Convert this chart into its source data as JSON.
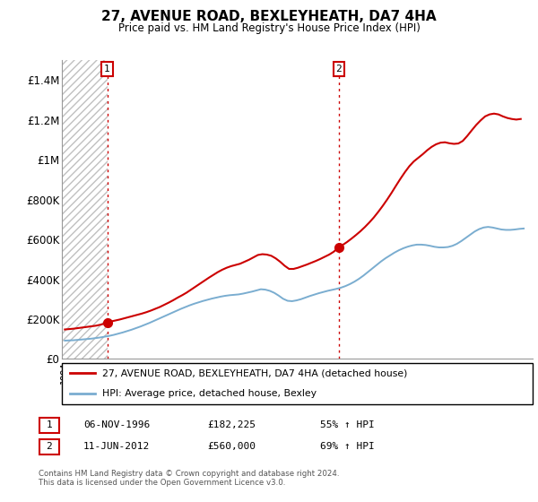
{
  "title": "27, AVENUE ROAD, BEXLEYHEATH, DA7 4HA",
  "subtitle": "Price paid vs. HM Land Registry's House Price Index (HPI)",
  "legend_entry1": "27, AVENUE ROAD, BEXLEYHEATH, DA7 4HA (detached house)",
  "legend_entry2": "HPI: Average price, detached house, Bexley",
  "annotation1_label": "1",
  "annotation1_date": "06-NOV-1996",
  "annotation1_price": "£182,225",
  "annotation1_hpi": "55% ↑ HPI",
  "annotation2_label": "2",
  "annotation2_date": "11-JUN-2012",
  "annotation2_price": "£560,000",
  "annotation2_hpi": "69% ↑ HPI",
  "footnote": "Contains HM Land Registry data © Crown copyright and database right 2024.\nThis data is licensed under the Open Government Licence v3.0.",
  "red_color": "#cc0000",
  "blue_color": "#7aadd0",
  "ylim": [
    0,
    1500000
  ],
  "yticks": [
    0,
    200000,
    400000,
    600000,
    800000,
    1000000,
    1200000,
    1400000
  ],
  "ytick_labels": [
    "£0",
    "£200K",
    "£400K",
    "£600K",
    "£800K",
    "£1M",
    "£1.2M",
    "£1.4M"
  ],
  "sale1_x": 1996.85,
  "sale1_y": 182225,
  "sale2_x": 2012.44,
  "sale2_y": 560000,
  "xmin": 1993.8,
  "xmax": 2025.5,
  "red_line_x": [
    1994.0,
    1994.3,
    1994.6,
    1994.9,
    1995.2,
    1995.5,
    1995.8,
    1996.1,
    1996.4,
    1996.7,
    1996.85,
    1997.1,
    1997.4,
    1997.7,
    1998.0,
    1998.3,
    1998.6,
    1998.9,
    1999.2,
    1999.5,
    1999.8,
    2000.1,
    2000.4,
    2000.7,
    2001.0,
    2001.3,
    2001.6,
    2001.9,
    2002.2,
    2002.5,
    2002.8,
    2003.1,
    2003.4,
    2003.7,
    2004.0,
    2004.3,
    2004.6,
    2004.9,
    2005.2,
    2005.5,
    2005.8,
    2006.1,
    2006.4,
    2006.7,
    2007.0,
    2007.3,
    2007.6,
    2007.9,
    2008.2,
    2008.5,
    2008.8,
    2009.1,
    2009.4,
    2009.7,
    2010.0,
    2010.3,
    2010.6,
    2010.9,
    2011.2,
    2011.5,
    2011.8,
    2012.1,
    2012.44,
    2012.7,
    2013.0,
    2013.3,
    2013.6,
    2013.9,
    2014.2,
    2014.5,
    2014.8,
    2015.1,
    2015.4,
    2015.7,
    2016.0,
    2016.3,
    2016.6,
    2016.9,
    2017.2,
    2017.5,
    2017.8,
    2018.1,
    2018.4,
    2018.7,
    2019.0,
    2019.3,
    2019.6,
    2019.9,
    2020.2,
    2020.5,
    2020.8,
    2021.1,
    2021.4,
    2021.7,
    2022.0,
    2022.3,
    2022.6,
    2022.9,
    2023.2,
    2023.5,
    2023.8,
    2024.1,
    2024.4,
    2024.7
  ],
  "red_line_y": [
    148000,
    150000,
    152000,
    155000,
    158000,
    161000,
    164000,
    167000,
    172000,
    178000,
    182225,
    188000,
    193000,
    198000,
    204000,
    210000,
    216000,
    222000,
    228000,
    235000,
    243000,
    252000,
    261000,
    272000,
    283000,
    295000,
    308000,
    320000,
    333000,
    348000,
    363000,
    378000,
    393000,
    408000,
    422000,
    436000,
    448000,
    458000,
    466000,
    472000,
    478000,
    488000,
    498000,
    510000,
    522000,
    526000,
    524000,
    518000,
    505000,
    488000,
    468000,
    452000,
    452000,
    458000,
    466000,
    474000,
    483000,
    492000,
    502000,
    513000,
    524000,
    538000,
    560000,
    572000,
    587000,
    604000,
    622000,
    641000,
    662000,
    685000,
    710000,
    738000,
    768000,
    800000,
    834000,
    870000,
    905000,
    938000,
    968000,
    992000,
    1010000,
    1028000,
    1048000,
    1065000,
    1078000,
    1086000,
    1088000,
    1083000,
    1080000,
    1082000,
    1095000,
    1120000,
    1148000,
    1175000,
    1198000,
    1218000,
    1228000,
    1232000,
    1228000,
    1218000,
    1210000,
    1205000,
    1202000,
    1205000
  ],
  "blue_line_x": [
    1994.0,
    1994.3,
    1994.6,
    1994.9,
    1995.2,
    1995.5,
    1995.8,
    1996.1,
    1996.4,
    1996.7,
    1997.0,
    1997.3,
    1997.6,
    1997.9,
    1998.2,
    1998.5,
    1998.8,
    1999.1,
    1999.4,
    1999.7,
    2000.0,
    2000.3,
    2000.6,
    2000.9,
    2001.2,
    2001.5,
    2001.8,
    2002.1,
    2002.4,
    2002.7,
    2003.0,
    2003.3,
    2003.6,
    2003.9,
    2004.2,
    2004.5,
    2004.8,
    2005.1,
    2005.4,
    2005.7,
    2006.0,
    2006.3,
    2006.6,
    2006.9,
    2007.2,
    2007.5,
    2007.8,
    2008.1,
    2008.4,
    2008.7,
    2009.0,
    2009.3,
    2009.6,
    2009.9,
    2010.2,
    2010.5,
    2010.8,
    2011.1,
    2011.4,
    2011.7,
    2012.0,
    2012.3,
    2012.6,
    2012.9,
    2013.2,
    2013.5,
    2013.8,
    2014.1,
    2014.4,
    2014.7,
    2015.0,
    2015.3,
    2015.6,
    2015.9,
    2016.2,
    2016.5,
    2016.8,
    2017.1,
    2017.4,
    2017.7,
    2018.0,
    2018.3,
    2018.6,
    2018.9,
    2019.2,
    2019.5,
    2019.8,
    2020.1,
    2020.4,
    2020.7,
    2021.0,
    2021.3,
    2021.6,
    2021.9,
    2022.2,
    2022.5,
    2022.8,
    2023.1,
    2023.4,
    2023.7,
    2024.0,
    2024.3,
    2024.6,
    2024.9
  ],
  "blue_line_y": [
    92000,
    93000,
    94000,
    96000,
    98000,
    100000,
    102000,
    105000,
    108000,
    112000,
    116000,
    121000,
    127000,
    133000,
    140000,
    147000,
    155000,
    163000,
    172000,
    181000,
    191000,
    201000,
    211000,
    221000,
    231000,
    241000,
    251000,
    260000,
    269000,
    277000,
    284000,
    291000,
    297000,
    303000,
    308000,
    313000,
    317000,
    320000,
    322000,
    324000,
    328000,
    333000,
    338000,
    344000,
    350000,
    348000,
    342000,
    332000,
    318000,
    302000,
    292000,
    290000,
    294000,
    300000,
    308000,
    316000,
    323000,
    330000,
    336000,
    342000,
    347000,
    352000,
    358000,
    366000,
    376000,
    388000,
    402000,
    418000,
    436000,
    454000,
    472000,
    490000,
    506000,
    520000,
    534000,
    546000,
    556000,
    564000,
    570000,
    574000,
    574000,
    572000,
    568000,
    563000,
    560000,
    560000,
    562000,
    568000,
    578000,
    592000,
    608000,
    624000,
    640000,
    652000,
    660000,
    663000,
    660000,
    655000,
    650000,
    648000,
    648000,
    650000,
    653000,
    655000
  ]
}
